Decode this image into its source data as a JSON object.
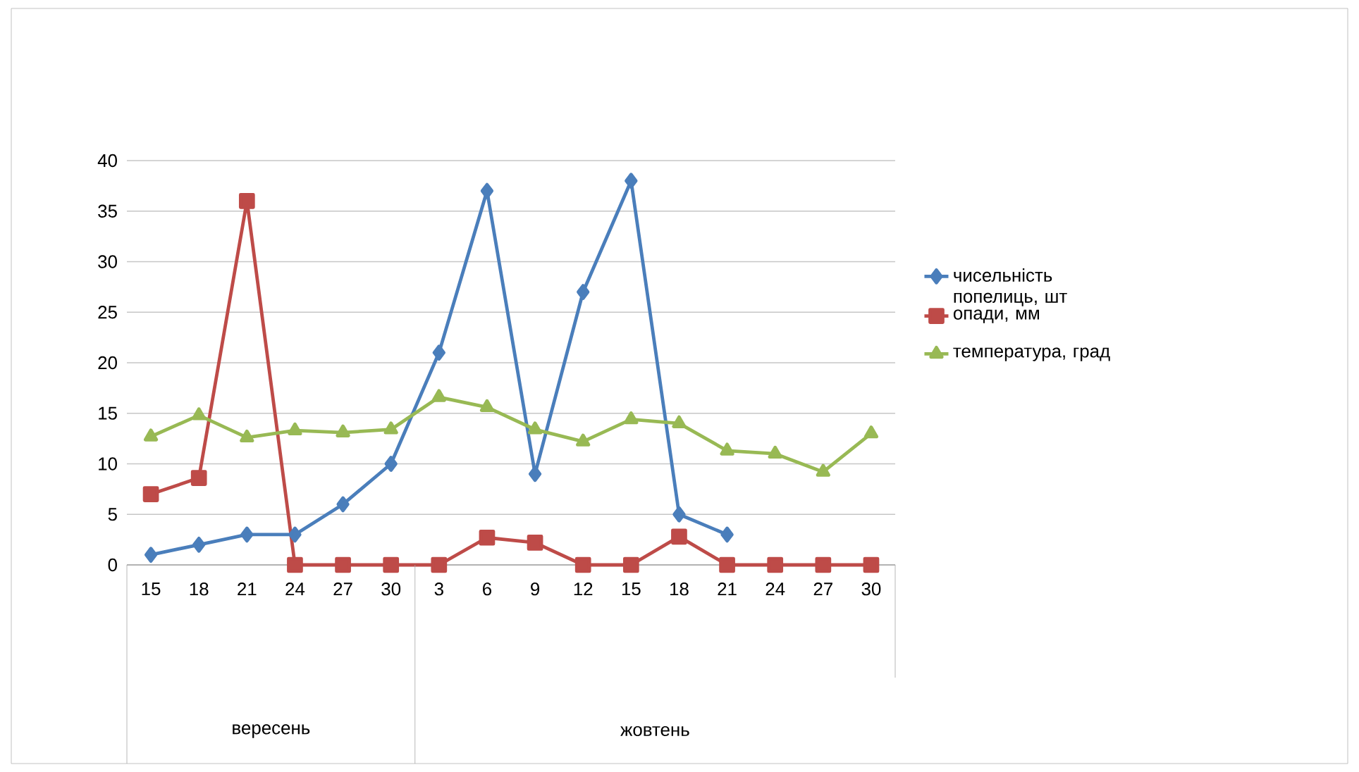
{
  "chart_data": {
    "type": "line",
    "categories": [
      "15",
      "18",
      "21",
      "24",
      "27",
      "30",
      "3",
      "6",
      "9",
      "12",
      "15",
      "18",
      "21",
      "24",
      "27",
      "30"
    ],
    "series": [
      {
        "name": "чисельність попелиць, шт",
        "color": "#4a7ebb",
        "marker": "diamond",
        "values": [
          1,
          2,
          3,
          3,
          6,
          10,
          21,
          37,
          9,
          27,
          38,
          5,
          3,
          null,
          null,
          null
        ]
      },
      {
        "name": "опади, мм",
        "color": "#be4b48",
        "marker": "square",
        "values": [
          7,
          8.6,
          36,
          0,
          0,
          0,
          0,
          2.7,
          2.2,
          0,
          0,
          2.8,
          0,
          0,
          0,
          0
        ]
      },
      {
        "name": "температура, град",
        "color": "#98b954",
        "marker": "triangle",
        "values": [
          12.7,
          14.8,
          12.6,
          13.3,
          13.1,
          13.4,
          16.6,
          15.6,
          13.4,
          12.2,
          14.4,
          14,
          11.3,
          11,
          9.2,
          13
        ]
      }
    ],
    "ylim": [
      0,
      40
    ],
    "yticks": [
      0,
      5,
      10,
      15,
      20,
      25,
      30,
      35,
      40
    ],
    "grid": "y",
    "legend": "right",
    "annotations": [
      "вересень",
      "жовтень"
    ]
  }
}
